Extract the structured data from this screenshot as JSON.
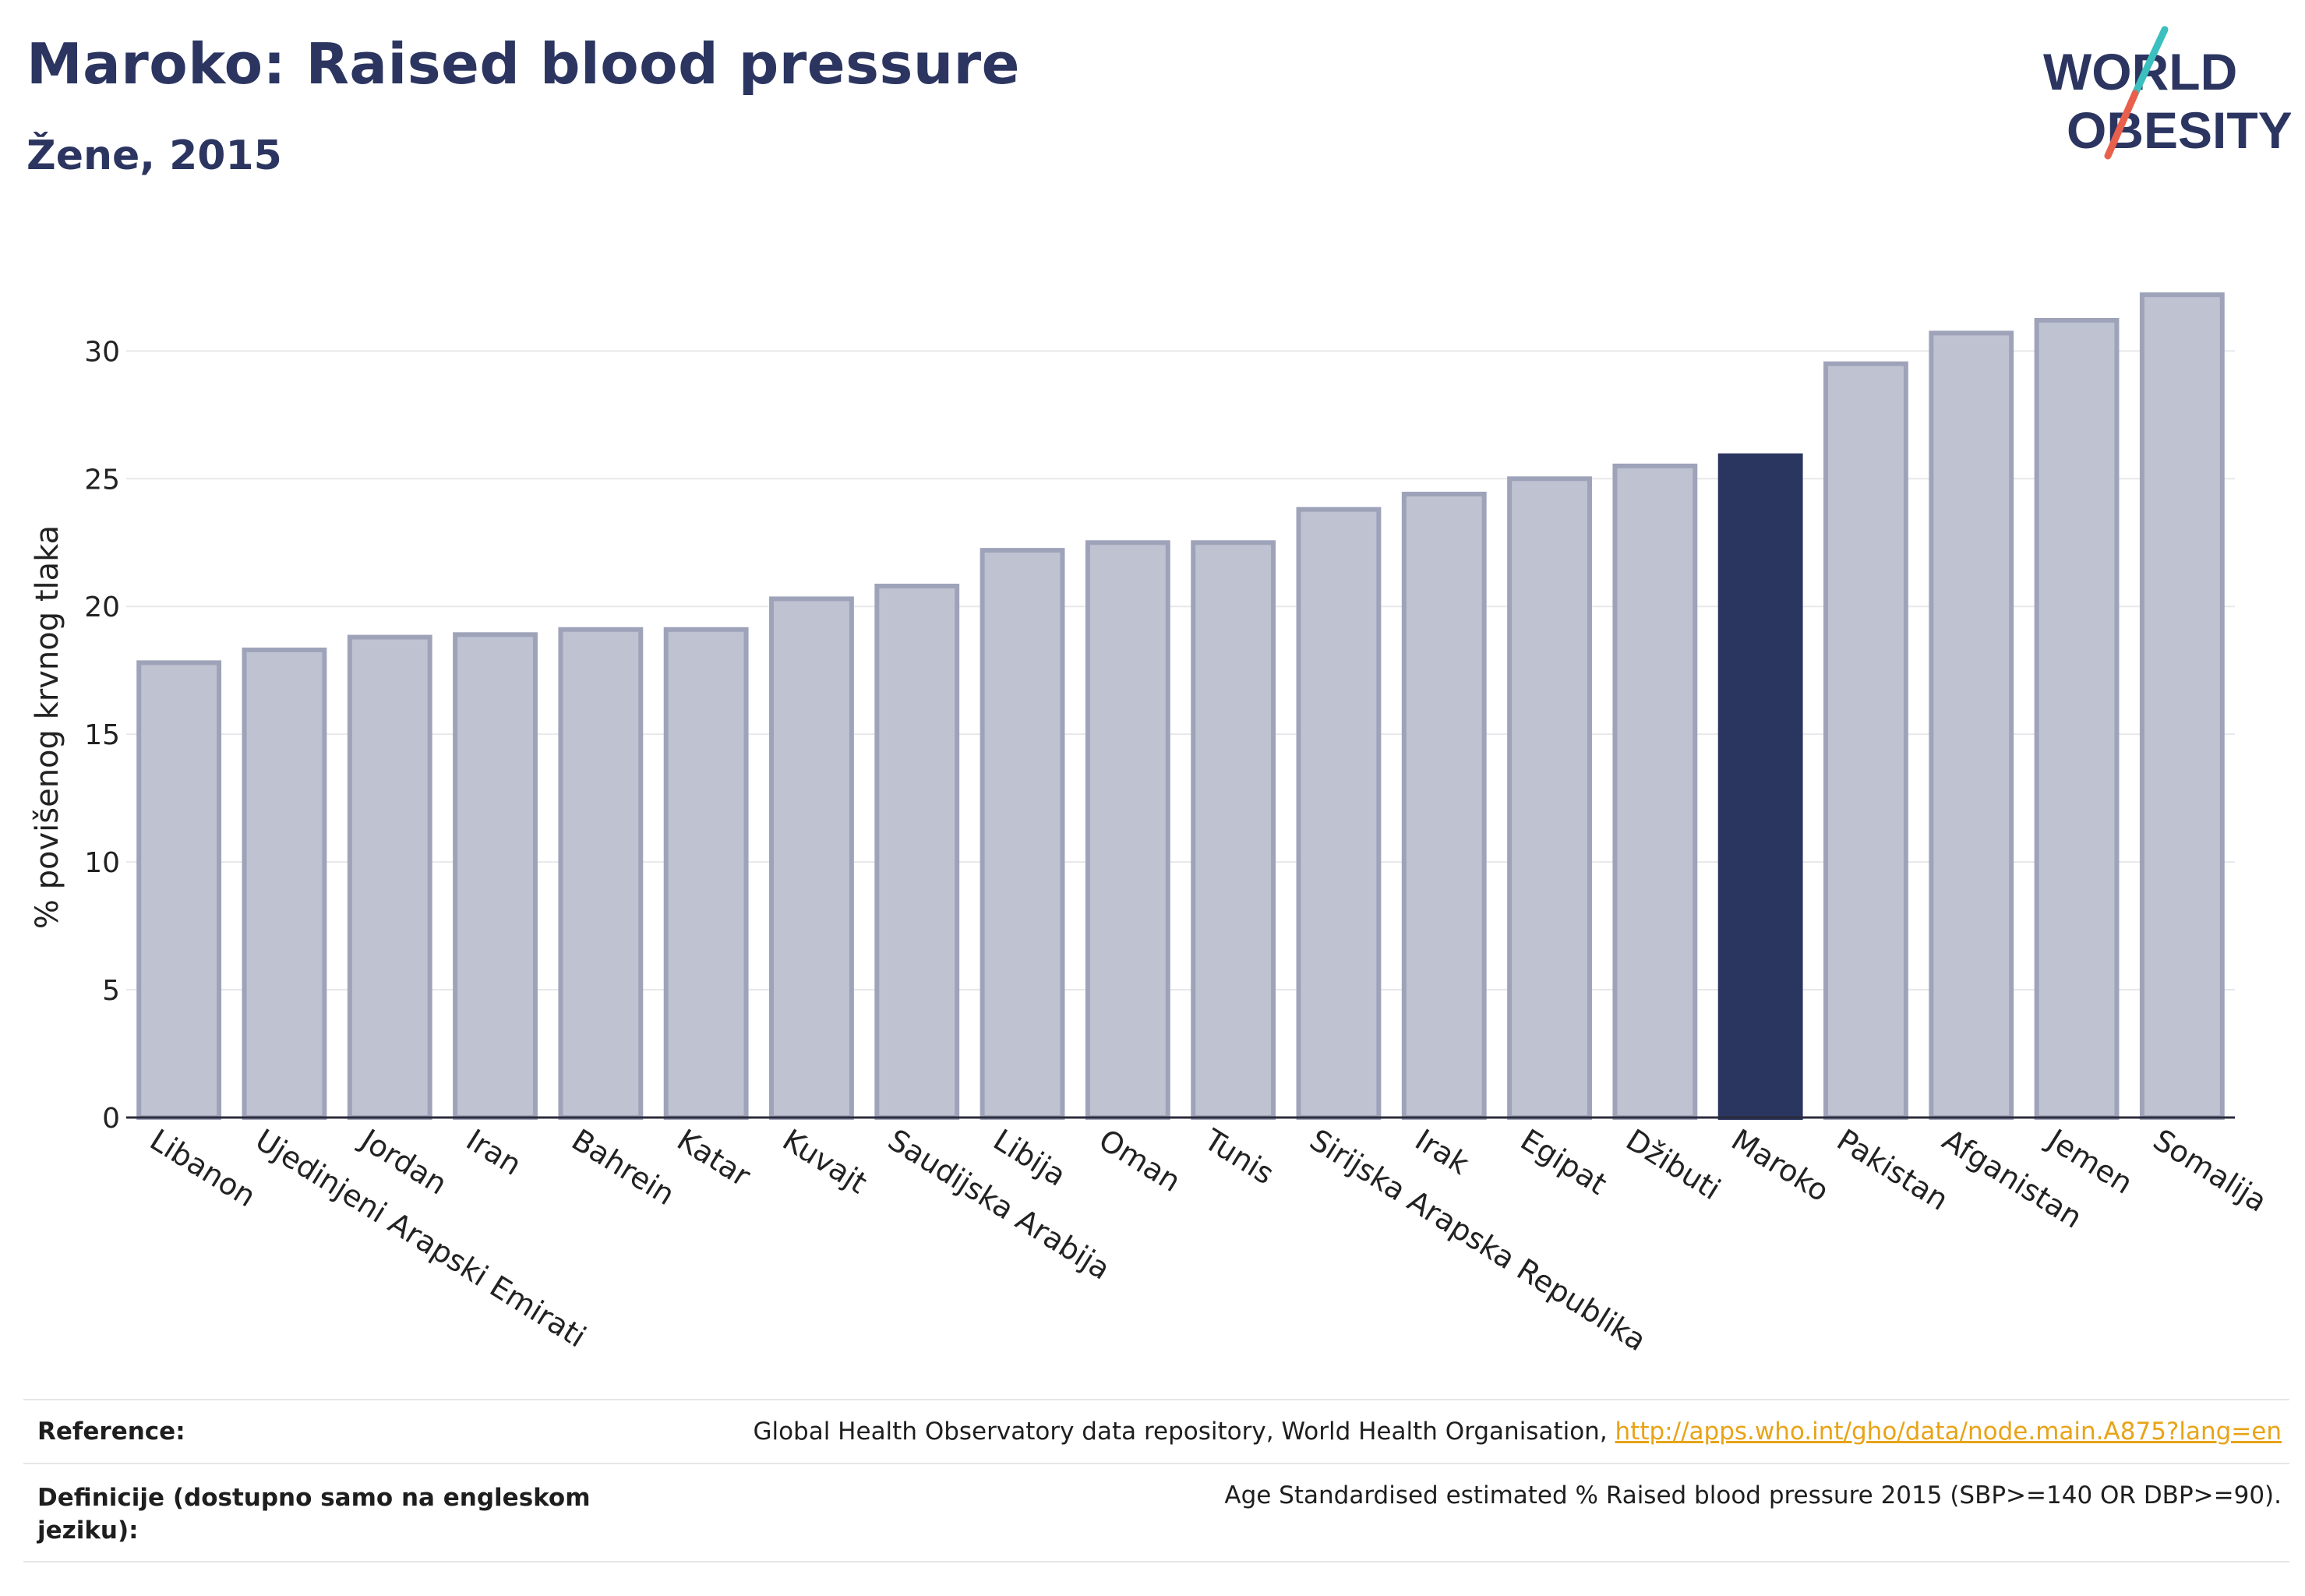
{
  "header": {
    "title": "Maroko: Raised blood pressure",
    "subtitle": "Žene, 2015"
  },
  "logo": {
    "line1": "WORLD",
    "line2": "OBESITY",
    "accent_teal": "#3bbfbf",
    "accent_red": "#e8604c",
    "text_color": "#2b3560"
  },
  "colors": {
    "bar": "#bfc2d1",
    "bar_edge": "#9ea3b9",
    "highlight": "#2a3560",
    "axis": "#2b2b3c",
    "grid": "#e8e8ec"
  },
  "chart_data": {
    "type": "bar",
    "ylabel": "% povišenog krvnog tlaka",
    "ylim": [
      0,
      33
    ],
    "yticks": [
      0,
      5,
      10,
      15,
      20,
      25,
      30
    ],
    "categories": [
      "Libanon",
      "Ujedinjeni Arapski Emirati",
      "Jordan",
      "Iran",
      "Bahrein",
      "Katar",
      "Kuvajt",
      "Saudijska Arabija",
      "Libija",
      "Oman",
      "Tunis",
      "Sirijska Arapska Republika",
      "Irak",
      "Egipat",
      "Džibuti",
      "Maroko",
      "Pakistan",
      "Afganistan",
      "Jemen",
      "Somalija"
    ],
    "values": [
      17.8,
      18.3,
      18.8,
      18.9,
      19.1,
      19.1,
      20.3,
      20.8,
      22.2,
      22.5,
      22.5,
      23.8,
      24.4,
      25.0,
      25.5,
      25.9,
      29.5,
      30.7,
      31.2,
      32.2
    ],
    "highlight": "Maroko",
    "grid": true
  },
  "footer": {
    "reference_label": "Reference:",
    "reference_text": "Global Health Observatory data repository, World Health Organisation, ",
    "reference_link": "http://apps.who.int/gho/data/node.main.A875?lang=en",
    "definition_label": "Definicije (dostupno samo na engleskom jeziku):",
    "definition_text": "Age Standardised estimated % Raised blood pressure 2015 (SBP>=140 OR DBP>=90)."
  }
}
